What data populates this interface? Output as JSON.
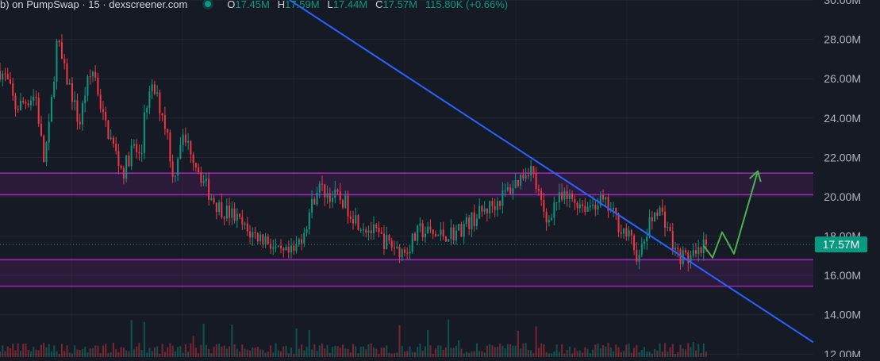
{
  "legend": {
    "title": "b) on PumpSwap · 15 · dexscreener.com",
    "o_label": "O",
    "o_value": "17.45M",
    "h_label": "H",
    "h_value": "17.59M",
    "l_label": "L",
    "l_value": "17.44M",
    "c_label": "C",
    "c_value": "17.57M",
    "change": "115.80K (+0.66%)"
  },
  "chart_data": {
    "type": "candlestick",
    "title": "",
    "xlabel": "",
    "ylabel": "",
    "y_unit": "M",
    "ylim": [
      11.85,
      30.0
    ],
    "y_ticks": [
      "30.00M",
      "28.00M",
      "26.00M",
      "24.00M",
      "22.00M",
      "20.00M",
      "18.00M",
      "16.00M",
      "14.00M",
      "12.00M"
    ],
    "y_tick_values": [
      30,
      28,
      26,
      24,
      22,
      20,
      18,
      16,
      14,
      12
    ],
    "last_price": 17.57,
    "last_price_label": "17.57M",
    "candle_count": 275,
    "close_path_anchors": [
      [
        0,
        26.4
      ],
      [
        8,
        26.0
      ],
      [
        20,
        24.5
      ],
      [
        30,
        24.8
      ],
      [
        45,
        25.2
      ],
      [
        55,
        21.8
      ],
      [
        62,
        23.5
      ],
      [
        72,
        28.0
      ],
      [
        80,
        26.5
      ],
      [
        90,
        25.3
      ],
      [
        100,
        23.6
      ],
      [
        108,
        25.5
      ],
      [
        118,
        26.5
      ],
      [
        130,
        24.0
      ],
      [
        145,
        22.3
      ],
      [
        155,
        21.2
      ],
      [
        168,
        22.6
      ],
      [
        178,
        21.8
      ],
      [
        182,
        24.5
      ],
      [
        193,
        25.5
      ],
      [
        205,
        24.2
      ],
      [
        212,
        23.0
      ],
      [
        218,
        20.8
      ],
      [
        228,
        23.0
      ],
      [
        240,
        22.5
      ],
      [
        252,
        21.2
      ],
      [
        262,
        20.3
      ],
      [
        275,
        19.5
      ],
      [
        295,
        19.0
      ],
      [
        312,
        18.2
      ],
      [
        338,
        17.8
      ],
      [
        352,
        17.0
      ],
      [
        370,
        17.1
      ],
      [
        384,
        18.4
      ],
      [
        400,
        20.5
      ],
      [
        415,
        20.1
      ],
      [
        432,
        19.8
      ],
      [
        450,
        18.8
      ],
      [
        470,
        18.2
      ],
      [
        490,
        17.6
      ],
      [
        510,
        17.2
      ],
      [
        530,
        18.3
      ],
      [
        550,
        18.0
      ],
      [
        575,
        18.2
      ],
      [
        600,
        19.0
      ],
      [
        625,
        19.7
      ],
      [
        650,
        20.7
      ],
      [
        668,
        21.6
      ],
      [
        678,
        20.2
      ],
      [
        688,
        18.6
      ],
      [
        700,
        19.8
      ],
      [
        720,
        19.9
      ],
      [
        740,
        19.5
      ],
      [
        755,
        19.8
      ],
      [
        768,
        19.4
      ],
      [
        780,
        18.6
      ],
      [
        795,
        17.8
      ],
      [
        805,
        16.8
      ],
      [
        818,
        18.5
      ],
      [
        828,
        19.5
      ],
      [
        840,
        18.7
      ],
      [
        850,
        17.2
      ],
      [
        862,
        16.9
      ],
      [
        878,
        16.9
      ],
      [
        890,
        17.57
      ]
    ],
    "trendline": {
      "from": [
        365,
        30.0
      ],
      "to": [
        1025,
        12.6
      ],
      "color": "#2962ff"
    },
    "zones": [
      {
        "name": "resistance",
        "top": 21.2,
        "bottom": 20.1,
        "color": "#9c27b0"
      },
      {
        "name": "support",
        "top": 16.8,
        "bottom": 15.45,
        "color": "#9c27b0"
      }
    ],
    "projection": {
      "color": "#4caf50",
      "points": [
        [
          887,
          17.5
        ],
        [
          898,
          16.9
        ],
        [
          910,
          18.2
        ],
        [
          925,
          17.1
        ],
        [
          955,
          21.3
        ]
      ]
    },
    "colors": {
      "up": "#089981",
      "down": "#f23645",
      "background": "#161a25",
      "grid": "#232734"
    },
    "grid": true
  }
}
